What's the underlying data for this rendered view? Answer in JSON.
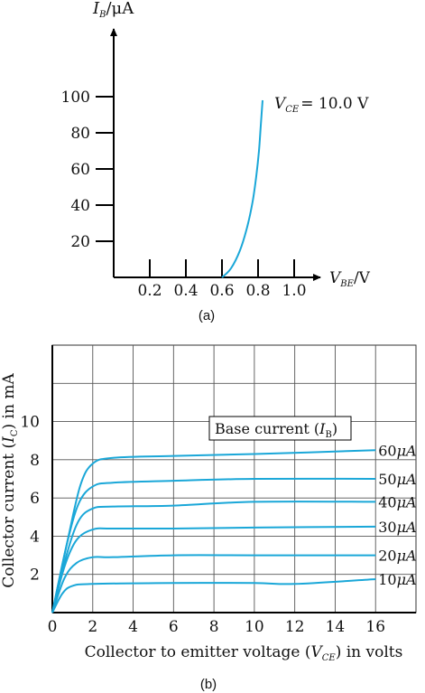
{
  "colors": {
    "curve": "#1aa7d8",
    "axis": "#000000",
    "grid": "#555555"
  },
  "chart_data": [
    {
      "type": "line",
      "caption": "(a)",
      "ylabel_main": "I",
      "ylabel_sub": "B",
      "ylabel_unit": "/μA",
      "xlabel_main": "V",
      "xlabel_sub": "BE",
      "xlabel_unit": "/V",
      "annotation_main": "V",
      "annotation_sub": "CE",
      "annotation_value": "= 10.0 V",
      "xlim": [
        0,
        1.1
      ],
      "ylim": [
        0,
        100
      ],
      "x_ticks": [
        0.2,
        0.4,
        0.6,
        0.8,
        1.0
      ],
      "x_tick_labels": [
        "0.2",
        "0.4",
        "0.6",
        "0.8",
        "1.0"
      ],
      "y_ticks": [
        20,
        40,
        60,
        80,
        100
      ],
      "y_tick_labels": [
        "20",
        "40",
        "60",
        "80",
        "100"
      ],
      "series": [
        {
          "points": [
            [
              0.6,
              0
            ],
            [
              0.65,
              5
            ],
            [
              0.7,
              15
            ],
            [
              0.74,
              28
            ],
            [
              0.77,
              42
            ],
            [
              0.79,
              56
            ],
            [
              0.805,
              70
            ],
            [
              0.815,
              84
            ],
            [
              0.825,
              98
            ]
          ]
        }
      ]
    },
    {
      "type": "line",
      "caption": "(b)",
      "ylabel_pre": "Collector current (",
      "ylabel_main": "I",
      "ylabel_sub": "C",
      "ylabel_post": ") in mA",
      "xlabel_pre": "Collector to emitter voltage (",
      "xlabel_main": "V",
      "xlabel_sub": "CE",
      "xlabel_post": ") in volts",
      "legend_title_pre": "Base current (",
      "legend_title_main": "I",
      "legend_title_sub": "B",
      "legend_title_post": ")",
      "xlim": [
        0,
        18
      ],
      "ylim": [
        0,
        14
      ],
      "grid": true,
      "x_ticks": [
        0,
        2,
        4,
        6,
        8,
        10,
        12,
        14,
        16
      ],
      "x_tick_labels": [
        "0",
        "2",
        "4",
        "6",
        "8",
        "10",
        "12",
        "14",
        "16"
      ],
      "y_ticks": [
        2,
        4,
        6,
        8,
        10
      ],
      "y_tick_labels": [
        "2",
        "4",
        "6",
        "8",
        "10"
      ],
      "series": [
        {
          "name": "60μA",
          "label_num": "60",
          "label_unit": "μA",
          "points": [
            [
              0,
              0
            ],
            [
              0.8,
              4
            ],
            [
              1.4,
              6.7
            ],
            [
              2.0,
              7.8
            ],
            [
              3,
              8.1
            ],
            [
              6,
              8.2
            ],
            [
              10,
              8.3
            ],
            [
              16,
              8.5
            ]
          ]
        },
        {
          "name": "50μA",
          "label_num": "50",
          "label_unit": "μA",
          "points": [
            [
              0,
              0
            ],
            [
              0.7,
              3.5
            ],
            [
              1.3,
              5.7
            ],
            [
              2.0,
              6.6
            ],
            [
              3,
              6.8
            ],
            [
              6,
              6.9
            ],
            [
              10,
              7.0
            ],
            [
              16,
              7.0
            ]
          ]
        },
        {
          "name": "40μA",
          "label_num": "40",
          "label_unit": "μA",
          "points": [
            [
              0,
              0
            ],
            [
              0.7,
              3.0
            ],
            [
              1.3,
              4.8
            ],
            [
              2.0,
              5.45
            ],
            [
              3,
              5.55
            ],
            [
              6,
              5.6
            ],
            [
              10,
              5.8
            ],
            [
              16,
              5.8
            ]
          ]
        },
        {
          "name": "30μA",
          "label_num": "30",
          "label_unit": "μA",
          "points": [
            [
              0,
              0
            ],
            [
              0.6,
              2.4
            ],
            [
              1.2,
              3.8
            ],
            [
              2.0,
              4.35
            ],
            [
              3,
              4.4
            ],
            [
              6,
              4.4
            ],
            [
              10,
              4.45
            ],
            [
              16,
              4.5
            ]
          ]
        },
        {
          "name": "20μA",
          "label_num": "20",
          "label_unit": "μA",
          "points": [
            [
              0,
              0
            ],
            [
              0.6,
              1.8
            ],
            [
              1.2,
              2.6
            ],
            [
              2.0,
              2.9
            ],
            [
              3,
              2.9
            ],
            [
              6,
              3.0
            ],
            [
              10,
              3.0
            ],
            [
              16,
              3.0
            ]
          ]
        },
        {
          "name": "10μA",
          "label_num": "10",
          "label_unit": "μA",
          "points": [
            [
              0,
              0
            ],
            [
              0.5,
              1.0
            ],
            [
              1.0,
              1.4
            ],
            [
              2.0,
              1.5
            ],
            [
              6,
              1.55
            ],
            [
              10,
              1.55
            ],
            [
              12,
              1.5
            ],
            [
              16,
              1.75
            ]
          ]
        }
      ]
    }
  ]
}
